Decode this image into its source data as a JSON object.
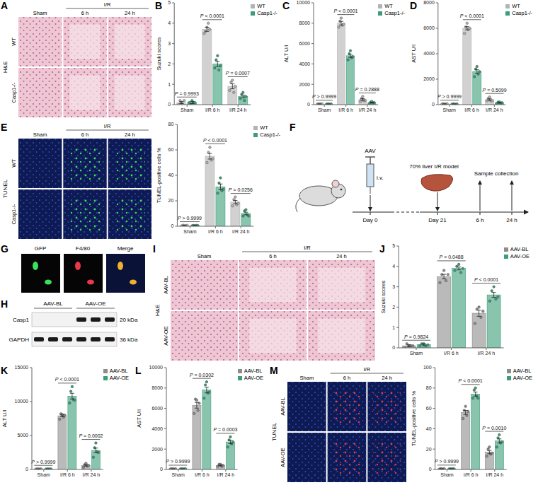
{
  "chart_data": [
    {
      "panel": "B",
      "type": "bar",
      "y_label": "Suzuki scores",
      "categories": [
        "Sham",
        "I/R 6 h",
        "I/R 24 h"
      ],
      "ylim": [
        0,
        5
      ],
      "yticks": [
        0,
        1,
        2,
        3,
        4,
        5
      ],
      "legend": "top-right",
      "annotations": [
        "P = 0.9993",
        "P < 0.0001",
        "P = 0.0007"
      ],
      "series": [
        {
          "name": "WT",
          "color": "#b3b3b3",
          "values": [
            0.1,
            3.7,
            0.9
          ],
          "errors": [
            0.05,
            0.1,
            0.12
          ],
          "points": [
            [
              0,
              0.2,
              0.1,
              0,
              0.2
            ],
            [
              3.5,
              3.6,
              3.8,
              4.0,
              3.7
            ],
            [
              0.7,
              1.1,
              1.2,
              0.6,
              0.9
            ]
          ]
        },
        {
          "name": "Casp1-/-",
          "color": "#3a9e78",
          "values": [
            0.1,
            2.0,
            0.4
          ],
          "errors": [
            0.05,
            0.13,
            0.07
          ],
          "points": [
            [
              0.1,
              0,
              0.2,
              0.1,
              0.1
            ],
            [
              1.8,
              2.2,
              2.4,
              1.7,
              1.9
            ],
            [
              0.3,
              0.5,
              0.6,
              0.2,
              0.4
            ]
          ]
        }
      ]
    },
    {
      "panel": "C",
      "type": "bar",
      "y_label": "ALT U/l",
      "categories": [
        "Sham",
        "I/R 6 h",
        "I/R 24 h"
      ],
      "ylim": [
        0,
        10000
      ],
      "yticks": [
        0,
        2000,
        4000,
        6000,
        8000,
        10000
      ],
      "legend": "top-right",
      "annotations": [
        "P > 0.9999",
        "P < 0.0001",
        "P = 0.2888"
      ],
      "series": [
        {
          "name": "WT",
          "color": "#b3b3b3",
          "values": [
            60,
            8000,
            500
          ],
          "errors": [
            10,
            180,
            90
          ],
          "points": [
            [
              40,
              70,
              60,
              50,
              80
            ],
            [
              7600,
              8200,
              8500,
              7800,
              7900
            ],
            [
              300,
              600,
              800,
              400,
              400
            ]
          ]
        },
        {
          "name": "Casp1-/-",
          "color": "#3a9e78",
          "values": [
            50,
            4800,
            200
          ],
          "errors": [
            10,
            160,
            40
          ],
          "points": [
            [
              40,
              60,
              50,
              30,
              70
            ],
            [
              4400,
              5000,
              5300,
              4600,
              4700
            ],
            [
              100,
              250,
              300,
              150,
              200
            ]
          ]
        }
      ]
    },
    {
      "panel": "D",
      "type": "bar",
      "y_label": "AST U/l",
      "categories": [
        "Sham",
        "I/R 6 h",
        "I/R 24 h"
      ],
      "ylim": [
        0,
        8000
      ],
      "yticks": [
        0,
        2000,
        4000,
        6000,
        8000
      ],
      "legend": "top-right",
      "annotations": [
        "P > 0.9999",
        "P < 0.0001",
        "P = 0.5099"
      ],
      "series": [
        {
          "name": "WT",
          "color": "#b3b3b3",
          "values": [
            50,
            6000,
            400
          ],
          "errors": [
            8,
            130,
            60
          ],
          "points": [
            [
              40,
              60,
              50,
              30,
              70
            ],
            [
              5600,
              6100,
              6400,
              5900,
              6000
            ],
            [
              300,
              500,
              600,
              300,
              300
            ]
          ]
        },
        {
          "name": "Casp1-/-",
          "color": "#3a9e78",
          "values": [
            40,
            2600,
            150
          ],
          "errors": [
            8,
            140,
            30
          ],
          "points": [
            [
              30,
              50,
              40,
              30,
              50
            ],
            [
              2200,
              2800,
              3000,
              2400,
              2600
            ],
            [
              100,
              200,
              200,
              100,
              150
            ]
          ]
        }
      ]
    },
    {
      "panel": "E",
      "type": "bar",
      "y_label": "TUNEL-positive cells %",
      "categories": [
        "Sham",
        "I/R 6 h",
        "I/R 24 h"
      ],
      "ylim": [
        0,
        80
      ],
      "yticks": [
        0,
        20,
        40,
        60,
        80
      ],
      "legend": "top-right",
      "annotations": [
        "P > 0.9999",
        "P < 0.0001",
        "P = 0.0256"
      ],
      "series": [
        {
          "name": "WT",
          "color": "#b3b3b3",
          "values": [
            0.5,
            55,
            19
          ],
          "errors": [
            0.2,
            2.2,
            1.3
          ],
          "points": [
            [
              0.2,
              0.8,
              0.5,
              0.3,
              0.7
            ],
            [
              50,
              58,
              62,
              52,
              53
            ],
            [
              16,
              21,
              23,
              17,
              18
            ]
          ]
        },
        {
          "name": "Casp1-/-",
          "color": "#3a9e78",
          "values": [
            0.5,
            31,
            10
          ],
          "errors": [
            0.2,
            2.2,
            1
          ],
          "points": [
            [
              0.4,
              0.6,
              0.3,
              0.7,
              0.5
            ],
            [
              26,
              34,
              38,
              28,
              29
            ],
            [
              8,
              12,
              13,
              9,
              8
            ]
          ]
        }
      ]
    },
    {
      "panel": "J",
      "type": "bar",
      "y_label": "Suzuki scores",
      "categories": [
        "Sham",
        "I/R 6 h",
        "I/R 24 h"
      ],
      "ylim": [
        0,
        5
      ],
      "yticks": [
        0,
        1,
        2,
        3,
        4,
        5
      ],
      "legend": "top-right",
      "annotations": [
        "P = 0.9824",
        "P = 0.0488",
        "P < 0.0001"
      ],
      "series": [
        {
          "name": "AAV-BL",
          "color": "#8c8c8c",
          "values": [
            0.1,
            3.5,
            1.7
          ],
          "errors": [
            0.05,
            0.11,
            0.15
          ],
          "points": [
            [
              0,
              0.2,
              0.1,
              0.1,
              0.1
            ],
            [
              3.2,
              3.6,
              3.8,
              3.3,
              3.6
            ],
            [
              1.2,
              1.9,
              2.0,
              1.5,
              1.8
            ]
          ]
        },
        {
          "name": "AAV-OE",
          "color": "#3a9e78",
          "values": [
            0.15,
            3.9,
            2.6
          ],
          "errors": [
            0.05,
            0.07,
            0.12
          ],
          "points": [
            [
              0.1,
              0.2,
              0.2,
              0.1,
              0.15
            ],
            [
              3.8,
              4.0,
              4.1,
              3.7,
              3.9
            ],
            [
              2.3,
              2.8,
              3.0,
              2.4,
              2.5
            ]
          ]
        }
      ]
    },
    {
      "panel": "K",
      "type": "bar",
      "y_label": "ALT U/l",
      "categories": [
        "Sham",
        "I/R 6 h",
        "I/R 24 h"
      ],
      "ylim": [
        0,
        15000
      ],
      "yticks": [
        0,
        5000,
        10000,
        15000
      ],
      "legend": "top-right",
      "annotations": [
        "P > 0.9999",
        "P < 0.0001",
        "P = 0.0002"
      ],
      "series": [
        {
          "name": "AAV-BL",
          "color": "#8c8c8c",
          "values": [
            60,
            7900,
            600
          ],
          "errors": [
            10,
            140,
            100
          ],
          "points": [
            [
              50,
              70,
              60,
              40,
              80
            ],
            [
              7400,
              8200,
              8100,
              7700,
              8000
            ],
            [
              300,
              700,
              900,
              500,
              600
            ]
          ]
        },
        {
          "name": "AAV-OE",
          "color": "#3a9e78",
          "values": [
            60,
            10800,
            2800
          ],
          "errors": [
            10,
            420,
            350
          ],
          "points": [
            [
              40,
              80,
              60,
              50,
              70
            ],
            [
              9800,
              11500,
              12200,
              10300,
              10200
            ],
            [
              1800,
              3200,
              3900,
              2600,
              2500
            ]
          ]
        }
      ]
    },
    {
      "panel": "L",
      "type": "bar",
      "y_label": "AST U/l",
      "categories": [
        "Sham",
        "I/R 6 h",
        "I/R 24 h"
      ],
      "ylim": [
        0,
        10000
      ],
      "yticks": [
        0,
        2000,
        4000,
        6000,
        8000,
        10000
      ],
      "legend": "top-right",
      "annotations": [
        "P > 0.9999",
        "P = 0.0302",
        "P = 0.0003"
      ],
      "series": [
        {
          "name": "AAV-BL",
          "color": "#8c8c8c",
          "values": [
            50,
            6300,
            400
          ],
          "errors": [
            8,
            280,
            45
          ],
          "points": [
            [
              40,
              60,
              50,
              30,
              70
            ],
            [
              5500,
              6900,
              6800,
              5800,
              6500
            ],
            [
              300,
              500,
              500,
              300,
              400
            ]
          ]
        },
        {
          "name": "AAV-OE",
          "color": "#3a9e78",
          "values": [
            50,
            7800,
            2700
          ],
          "errors": [
            8,
            280,
            160
          ],
          "points": [
            [
              40,
              60,
              50,
              40,
              60
            ],
            [
              7000,
              8300,
              8600,
              7500,
              7600
            ],
            [
              2200,
              2900,
              3200,
              2500,
              2700
            ]
          ]
        }
      ]
    },
    {
      "panel": "M",
      "type": "bar",
      "y_label": "TUNEL-positive cells %",
      "categories": [
        "Sham",
        "I/R 6 h",
        "I/R 24 h"
      ],
      "ylim": [
        0,
        100
      ],
      "yticks": [
        0,
        20,
        40,
        60,
        80,
        100
      ],
      "legend": "top-right",
      "annotations": [
        "P > 0.9999",
        "P < 0.0001",
        "P = 0.0010"
      ],
      "series": [
        {
          "name": "AAV-BL",
          "color": "#8c8c8c",
          "values": [
            0.5,
            56,
            17
          ],
          "errors": [
            0.2,
            2,
            1.6
          ],
          "points": [
            [
              0.2,
              0.8,
              0.5,
              0.3,
              0.7
            ],
            [
              50,
              58,
              62,
              53,
              57
            ],
            [
              13,
              20,
              22,
              15,
              16
            ]
          ]
        },
        {
          "name": "AAV-OE",
          "color": "#3a9e78",
          "values": [
            0.5,
            74,
            28
          ],
          "errors": [
            0.2,
            2,
            2
          ],
          "points": [
            [
              0.4,
              0.6,
              0.3,
              0.7,
              0.5
            ],
            [
              70,
              78,
              80,
              72,
              70
            ],
            [
              22,
              31,
              34,
              26,
              27
            ]
          ]
        }
      ]
    }
  ],
  "images": [
    {
      "panel": "A",
      "stain": "H&E",
      "rows": [
        "WT",
        "Casp1-/-"
      ],
      "columns": [
        "Sham",
        "6 h",
        "24 h"
      ],
      "column_group": "I/R"
    },
    {
      "panel": "E",
      "stain": "TUNEL",
      "rows": [
        "WT",
        "Casp1-/-"
      ],
      "columns": [
        "Sham",
        "6 h",
        "24 h"
      ],
      "column_group": "I/R"
    },
    {
      "panel": "I",
      "stain": "H&E",
      "rows": [
        "AAV-BL",
        "AAV-OE"
      ],
      "columns": [
        "Sham",
        "6 h",
        "24 h"
      ],
      "column_group": "I/R"
    },
    {
      "panel": "M",
      "stain": "TUNEL",
      "rows": [
        "AAV-BL",
        "AAV-OE"
      ],
      "columns": [
        "Sham",
        "6 h",
        "24 h"
      ],
      "column_group": "I/R"
    }
  ],
  "fluorescence": {
    "panel": "G",
    "channels": [
      "GFP",
      "F4/80",
      "Merge"
    ]
  },
  "blot": {
    "panel": "H",
    "groups": [
      "AAV-BL",
      "AAV-OE"
    ],
    "bands": [
      {
        "name": "Casp1",
        "size": "20 kDa"
      },
      {
        "name": "GAPDH",
        "size": "36 kDa"
      }
    ]
  },
  "scheme": {
    "panel": "F",
    "injection": "AAV",
    "route": "i.v.",
    "model": "70% liver I/R model",
    "sample": "Sample collection",
    "timeline": [
      "Day 0",
      "Day 21",
      "6 h",
      "24 h"
    ]
  }
}
